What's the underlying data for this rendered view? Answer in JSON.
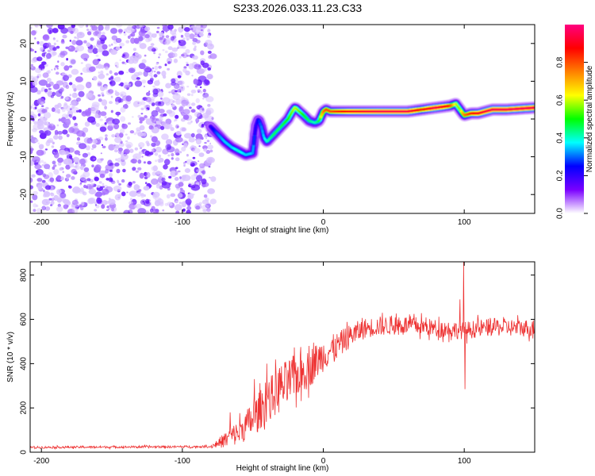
{
  "title": "S233.2026.033.11.23.C33",
  "chart_data": [
    {
      "type": "heatmap",
      "title": "S233.2026.033.11.23.C33",
      "xlabel": "Height of straight line (km)",
      "ylabel": "Frequency (Hz)",
      "xlim": [
        -208,
        150
      ],
      "ylim": [
        -25,
        25
      ],
      "xticks": [
        -200,
        -100,
        0,
        100
      ],
      "yticks": [
        -20,
        -10,
        0,
        10,
        20
      ],
      "noise_region": {
        "x_range": [
          -208,
          -78
        ],
        "y_range": [
          -25,
          25
        ]
      },
      "ridge": {
        "x": [
          -80,
          -75,
          -70,
          -65,
          -60,
          -55,
          -50,
          -48,
          -46,
          -44,
          -42,
          -40,
          -35,
          -30,
          -25,
          -22,
          -20,
          -17,
          -14,
          -10,
          -6,
          -3,
          0,
          2,
          5,
          10,
          20,
          40,
          60,
          70,
          80,
          90,
          94,
          97,
          100,
          105,
          110,
          120,
          130,
          150
        ],
        "y": [
          -2,
          -4,
          -6,
          -7.5,
          -8.5,
          -9.5,
          -9,
          -2,
          0,
          -2,
          -5,
          -6,
          -4,
          -2,
          0,
          2,
          3,
          2,
          1,
          -0.5,
          -1,
          -0.5,
          2,
          2.5,
          2,
          2,
          2,
          2,
          2,
          2.5,
          3,
          3.5,
          4,
          2.5,
          1,
          1.5,
          1.5,
          2.5,
          2.5,
          3
        ],
        "amp": [
          0.2,
          0.3,
          0.35,
          0.35,
          0.4,
          0.35,
          0.35,
          0.2,
          0.25,
          0.3,
          0.35,
          0.4,
          0.45,
          0.45,
          0.5,
          0.55,
          0.6,
          0.55,
          0.5,
          0.45,
          0.4,
          0.45,
          0.75,
          0.8,
          0.8,
          0.85,
          0.9,
          0.95,
          0.95,
          0.85,
          0.95,
          0.85,
          0.6,
          0.55,
          0.75,
          0.85,
          0.9,
          0.95,
          0.95,
          0.95
        ]
      },
      "colorbar": {
        "label": "Normalized spectral amplitude",
        "ticks": [
          "0.0",
          "0.2",
          "0.4",
          "0.6",
          "0.8"
        ],
        "tick_values": [
          0.0,
          0.2,
          0.4,
          0.6,
          0.8
        ],
        "range": [
          0,
          1
        ],
        "colors": [
          "#ffffff",
          "#7a00ff",
          "#0000ff",
          "#00ffff",
          "#00ff00",
          "#ffff00",
          "#ff8000",
          "#ff0000",
          "#ff0080"
        ]
      }
    },
    {
      "type": "line",
      "xlabel": "Height of straight line (km)",
      "ylabel": "SNR (10 * v/v)",
      "xlim": [
        -208,
        150
      ],
      "ylim": [
        0,
        860
      ],
      "xticks": [
        -200,
        -100,
        0,
        100
      ],
      "yticks": [
        0,
        200,
        400,
        600,
        800
      ],
      "color": "#ee3333",
      "trend": {
        "x": [
          -208,
          -80,
          -70,
          -60,
          -50,
          -40,
          -30,
          -20,
          -10,
          0,
          10,
          20,
          30,
          40,
          60,
          80,
          100,
          120,
          150
        ],
        "y": [
          22,
          25,
          55,
          90,
          150,
          230,
          290,
          340,
          380,
          440,
          480,
          530,
          560,
          570,
          575,
          560,
          550,
          565,
          560
        ]
      },
      "noise_amplitude": {
        "x": [
          -208,
          -80,
          -70,
          -50,
          -30,
          -10,
          10,
          30,
          80,
          150
        ],
        "y": [
          5,
          5,
          35,
          80,
          110,
          90,
          60,
          45,
          40,
          40
        ]
      },
      "spikes": [
        {
          "x": -66,
          "y": 180
        },
        {
          "x": -49,
          "y": 330
        },
        {
          "x": -40,
          "y": 400
        },
        {
          "x": -31,
          "y": 380
        },
        {
          "x": -16,
          "y": 475
        },
        {
          "x": -10,
          "y": 480
        },
        {
          "x": 97,
          "y": 690
        },
        {
          "x": 99.5,
          "y": 860
        },
        {
          "x": 100.5,
          "y": 285
        }
      ]
    }
  ]
}
